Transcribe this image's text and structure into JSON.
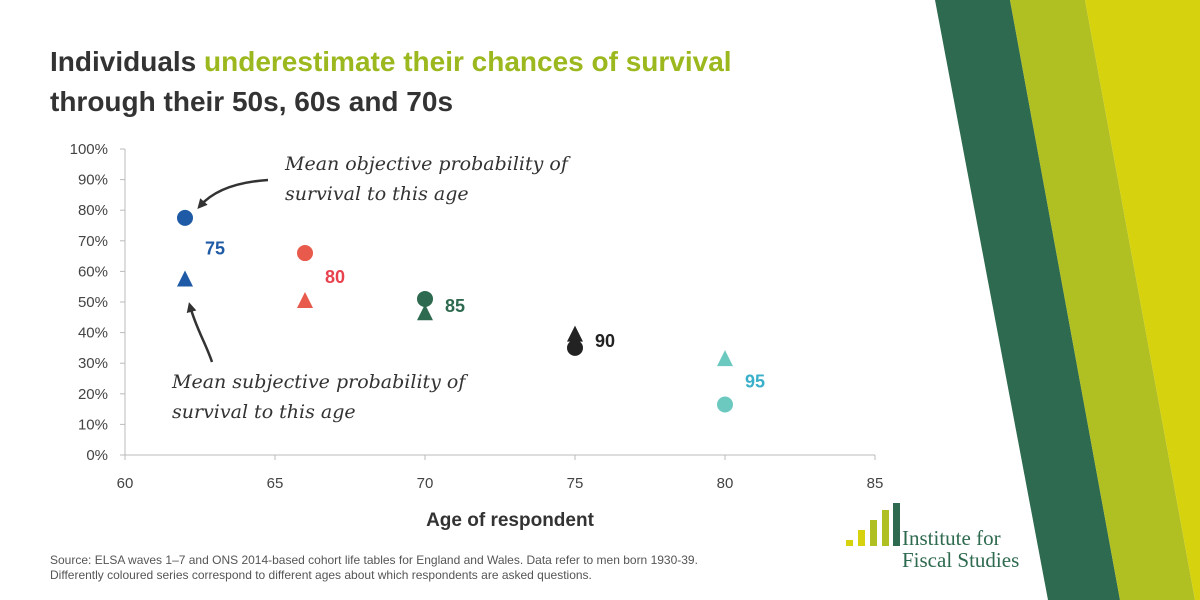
{
  "title": {
    "part1": "Individuals ",
    "highlight": "underestimate their chances of survival",
    "line2": "through their 50s, 60s and 70s"
  },
  "chart_data": {
    "type": "scatter",
    "xlabel": "Age of respondent",
    "ylabel": "",
    "xlim": [
      60,
      85
    ],
    "ylim": [
      0,
      100
    ],
    "x_ticks": [
      "60",
      "65",
      "70",
      "75",
      "80",
      "85"
    ],
    "y_ticks": [
      "0%",
      "10%",
      "20%",
      "30%",
      "40%",
      "50%",
      "60%",
      "70%",
      "80%",
      "90%",
      "100%"
    ],
    "series": [
      {
        "name": "75",
        "color": "#1f5aa6",
        "objective": {
          "x": 62,
          "y": 77.5
        },
        "subjective": {
          "x": 62,
          "y": 57.5
        }
      },
      {
        "name": "80",
        "color": "#e85a4b",
        "objective": {
          "x": 66,
          "y": 66
        },
        "subjective": {
          "x": 66,
          "y": 50.5
        }
      },
      {
        "name": "85",
        "color": "#2e6a4f",
        "objective": {
          "x": 70,
          "y": 51
        },
        "subjective": {
          "x": 70,
          "y": 46.5
        }
      },
      {
        "name": "90",
        "color": "#222222",
        "objective": {
          "x": 75,
          "y": 35
        },
        "subjective": {
          "x": 75,
          "y": 39.5
        }
      },
      {
        "name": "95",
        "color": "#6cc9c0",
        "objective": {
          "x": 80,
          "y": 16.5
        },
        "subjective": {
          "x": 80,
          "y": 31.5
        }
      }
    ],
    "series_label_colors": [
      "#1f5aa6",
      "#e8424f",
      "#2e6a4f",
      "#222222",
      "#3aafc9"
    ],
    "annotations": [
      {
        "line1": "Mean objective probability of",
        "line2": "survival to this age"
      },
      {
        "line1": "Mean subjective probability of",
        "line2": "survival to this age"
      }
    ],
    "legend": "none",
    "grid": false
  },
  "source": {
    "line1": "Source: ELSA waves 1–7 and ONS 2014-based cohort life tables for England and Wales. Data refer to men born 1930-39.",
    "line2": "Differently coloured series correspond to different ages about which respondents are asked questions."
  },
  "logo": {
    "line1": "Institute for",
    "line2": "Fiscal Studies",
    "colors": [
      "#d7d20e",
      "#b0bf22",
      "#2e6a4f"
    ]
  }
}
